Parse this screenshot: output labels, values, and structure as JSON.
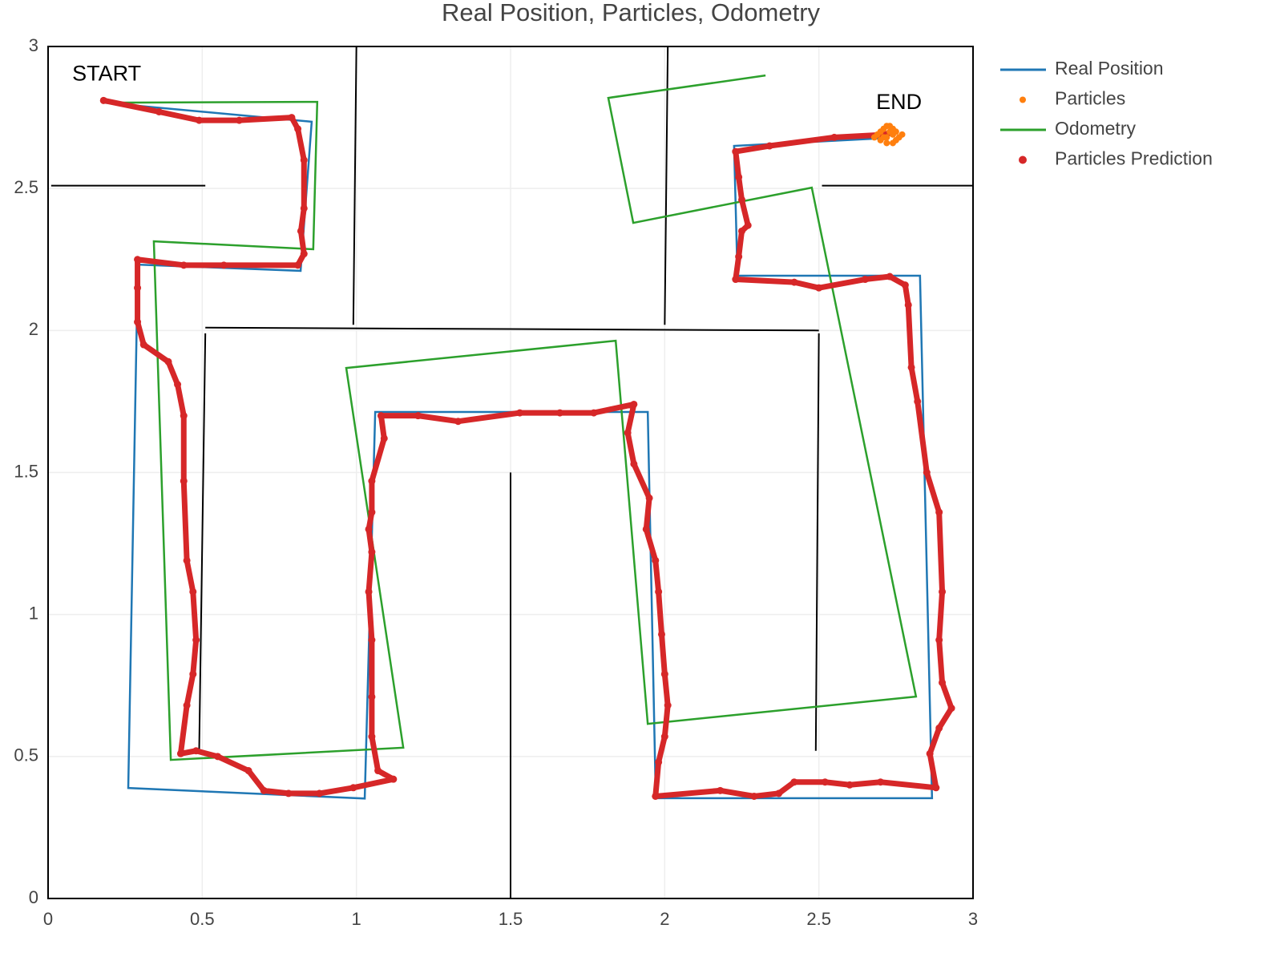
{
  "chart_data": {
    "type": "scatter",
    "title": "Real Position, Particles, Odometry",
    "xlim": [
      0,
      3
    ],
    "ylim": [
      0,
      3
    ],
    "xticks": [
      0,
      0.5,
      1,
      1.5,
      2,
      2.5,
      3
    ],
    "yticks": [
      0,
      0.5,
      1,
      1.5,
      2,
      2.5,
      3
    ],
    "grid": true,
    "legend": "right",
    "walls": {
      "color": "#000000",
      "segments": [
        [
          0.01,
          2.51,
          0.51,
          2.51
        ],
        [
          1.0,
          3,
          0.99,
          2.02
        ],
        [
          2.01,
          3,
          2.0,
          2.02
        ],
        [
          2.51,
          2.51,
          3,
          2.51
        ],
        [
          0.51,
          2.01,
          2.5,
          2.0
        ],
        [
          0.51,
          1.99,
          0.49,
          0.52
        ],
        [
          2.5,
          1.99,
          2.49,
          0.52
        ],
        [
          1.5,
          1.5,
          1.5,
          0
        ]
      ]
    },
    "annotations": [
      {
        "text": "START",
        "x": 0.19,
        "y": 2.9
      },
      {
        "text": "END",
        "x": 2.76,
        "y": 2.8
      }
    ],
    "series": [
      {
        "name": "Real Position",
        "color": "#1f77b4",
        "mode": "lines",
        "x": [
          0.182,
          0.855,
          0.819,
          0.291,
          0.26,
          1.027,
          1.061,
          1.945,
          1.971,
          2.867,
          2.828,
          2.236,
          2.225,
          2.724
        ],
        "values": [
          2.802,
          2.735,
          2.21,
          2.232,
          0.389,
          0.352,
          1.713,
          1.713,
          0.353,
          0.353,
          2.193,
          2.193,
          2.65,
          2.678
        ]
      },
      {
        "name": "Particles",
        "color": "#ff7f0e",
        "mode": "markers",
        "x": [
          2.69,
          2.7,
          2.71,
          2.72,
          2.73,
          2.74,
          2.75,
          2.76,
          2.7,
          2.72,
          2.74,
          2.71,
          2.73,
          2.75,
          2.68,
          2.77,
          2.72,
          2.74
        ],
        "values": [
          2.69,
          2.67,
          2.71,
          2.68,
          2.72,
          2.66,
          2.7,
          2.68,
          2.7,
          2.66,
          2.69,
          2.68,
          2.7,
          2.67,
          2.68,
          2.69,
          2.72,
          2.71
        ]
      },
      {
        "name": "Odometry",
        "color": "#2ca02c",
        "mode": "lines",
        "x": [
          0.182,
          0.873,
          0.86,
          0.343,
          0.398,
          1.152,
          0.967,
          1.841,
          1.945,
          2.815,
          2.477,
          1.898,
          1.817,
          2.327
        ],
        "values": [
          2.802,
          2.805,
          2.286,
          2.314,
          0.488,
          0.531,
          1.868,
          1.964,
          0.615,
          0.711,
          2.503,
          2.379,
          2.819,
          2.898
        ]
      },
      {
        "name": "Particles Prediction",
        "color": "#d62728",
        "mode": "markers",
        "x": [
          0.18,
          0.36,
          0.49,
          0.62,
          0.79,
          0.81,
          0.83,
          0.83,
          0.82,
          0.83,
          0.81,
          0.57,
          0.44,
          0.29,
          0.29,
          0.29,
          0.31,
          0.39,
          0.42,
          0.44,
          0.44,
          0.45,
          0.47,
          0.48,
          0.47,
          0.45,
          0.43,
          0.48,
          0.55,
          0.65,
          0.7,
          0.78,
          0.88,
          0.99,
          1.12,
          1.07,
          1.05,
          1.05,
          1.05,
          1.04,
          1.05,
          1.04,
          1.05,
          1.05,
          1.09,
          1.08,
          1.2,
          1.33,
          1.53,
          1.66,
          1.77,
          1.9,
          1.88,
          1.9,
          1.95,
          1.94,
          1.97,
          1.98,
          1.99,
          2.0,
          2.01,
          2.0,
          1.98,
          1.97,
          2.18,
          2.29,
          2.37,
          2.42,
          2.52,
          2.6,
          2.7,
          2.88,
          2.86,
          2.89,
          2.93,
          2.9,
          2.89,
          2.9,
          2.89,
          2.85,
          2.82,
          2.8,
          2.79,
          2.78,
          2.73,
          2.65,
          2.5,
          2.42,
          2.23,
          2.24,
          2.25,
          2.27,
          2.25,
          2.24,
          2.23,
          2.34,
          2.55,
          2.72
        ],
        "values": [
          2.81,
          2.77,
          2.74,
          2.74,
          2.75,
          2.71,
          2.6,
          2.43,
          2.35,
          2.27,
          2.23,
          2.23,
          2.23,
          2.25,
          2.15,
          2.03,
          1.95,
          1.89,
          1.81,
          1.7,
          1.47,
          1.19,
          1.08,
          0.91,
          0.79,
          0.68,
          0.51,
          0.52,
          0.5,
          0.45,
          0.38,
          0.37,
          0.37,
          0.39,
          0.42,
          0.45,
          0.57,
          0.71,
          0.91,
          1.08,
          1.22,
          1.3,
          1.36,
          1.47,
          1.62,
          1.7,
          1.7,
          1.68,
          1.71,
          1.71,
          1.71,
          1.74,
          1.64,
          1.53,
          1.41,
          1.3,
          1.19,
          1.08,
          0.93,
          0.79,
          0.68,
          0.57,
          0.48,
          0.36,
          0.38,
          0.36,
          0.37,
          0.41,
          0.41,
          0.4,
          0.41,
          0.39,
          0.51,
          0.6,
          0.67,
          0.76,
          0.91,
          1.08,
          1.36,
          1.5,
          1.75,
          1.87,
          2.09,
          2.16,
          2.19,
          2.18,
          2.15,
          2.17,
          2.18,
          2.26,
          2.35,
          2.37,
          2.46,
          2.54,
          2.63,
          2.65,
          2.68,
          2.69
        ]
      }
    ]
  }
}
